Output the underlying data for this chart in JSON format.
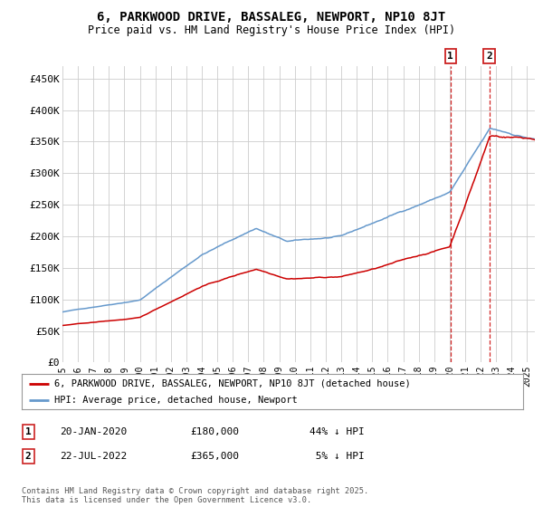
{
  "title": "6, PARKWOOD DRIVE, BASSALEG, NEWPORT, NP10 8JT",
  "subtitle": "Price paid vs. HM Land Registry's House Price Index (HPI)",
  "ylabel_ticks": [
    "£0",
    "£50K",
    "£100K",
    "£150K",
    "£200K",
    "£250K",
    "£300K",
    "£350K",
    "£400K",
    "£450K"
  ],
  "ytick_values": [
    0,
    50000,
    100000,
    150000,
    200000,
    250000,
    300000,
    350000,
    400000,
    450000
  ],
  "ylim": [
    0,
    470000
  ],
  "xlim_start": 1995.0,
  "xlim_end": 2025.5,
  "hpi_color": "#6699cc",
  "price_color": "#cc0000",
  "marker1_date": 2020.05,
  "marker1_price": 180000,
  "marker2_date": 2022.55,
  "marker2_price": 365000,
  "legend_entry1": "6, PARKWOOD DRIVE, BASSALEG, NEWPORT, NP10 8JT (detached house)",
  "legend_entry2": "HPI: Average price, detached house, Newport",
  "footer": "Contains HM Land Registry data © Crown copyright and database right 2025.\nThis data is licensed under the Open Government Licence v3.0.",
  "background_color": "#ffffff",
  "grid_color": "#cccccc"
}
